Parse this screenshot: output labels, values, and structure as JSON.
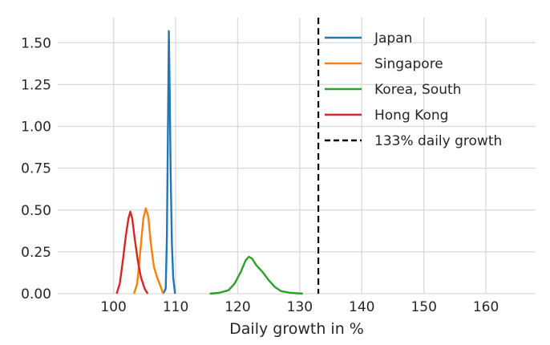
{
  "chart_data": {
    "type": "line",
    "title": "",
    "xlabel": "Daily growth in %",
    "ylabel": "",
    "xlim": [
      91,
      168
    ],
    "ylim": [
      0,
      1.65
    ],
    "x_ticks": [
      "100",
      "110",
      "120",
      "130",
      "140",
      "150",
      "160"
    ],
    "y_ticks": [
      "0.00",
      "0.25",
      "0.50",
      "0.75",
      "1.00",
      "1.25",
      "1.50"
    ],
    "grid": true,
    "legend_position": "top-right",
    "series": [
      {
        "name": "Japan",
        "color": "#1f77b4",
        "points": [
          [
            108.0,
            0.0
          ],
          [
            108.4,
            0.03
          ],
          [
            108.6,
            0.35
          ],
          [
            108.75,
            0.95
          ],
          [
            108.9,
            1.57
          ],
          [
            109.05,
            1.2
          ],
          [
            109.2,
            0.7
          ],
          [
            109.4,
            0.3
          ],
          [
            109.6,
            0.1
          ],
          [
            109.9,
            0.0
          ]
        ]
      },
      {
        "name": "Singapore",
        "color": "#ff7f0e",
        "points": [
          [
            103.3,
            0.0
          ],
          [
            103.8,
            0.06
          ],
          [
            104.3,
            0.25
          ],
          [
            104.8,
            0.45
          ],
          [
            105.2,
            0.51
          ],
          [
            105.6,
            0.46
          ],
          [
            106.0,
            0.3
          ],
          [
            106.5,
            0.16
          ],
          [
            107.0,
            0.1
          ],
          [
            107.5,
            0.05
          ],
          [
            108.0,
            0.0
          ]
        ]
      },
      {
        "name": "Korea, South",
        "color": "#2ca02c",
        "points": [
          [
            115.5,
            0.0
          ],
          [
            117.0,
            0.005
          ],
          [
            118.5,
            0.02
          ],
          [
            119.5,
            0.06
          ],
          [
            120.5,
            0.13
          ],
          [
            121.3,
            0.2
          ],
          [
            121.8,
            0.22
          ],
          [
            122.3,
            0.21
          ],
          [
            123.0,
            0.17
          ],
          [
            124.0,
            0.13
          ],
          [
            125.0,
            0.08
          ],
          [
            126.0,
            0.04
          ],
          [
            127.0,
            0.015
          ],
          [
            128.5,
            0.005
          ],
          [
            130.5,
            0.0
          ]
        ]
      },
      {
        "name": "Hong Kong",
        "color": "#d62728",
        "points": [
          [
            100.5,
            0.0
          ],
          [
            101.0,
            0.06
          ],
          [
            101.5,
            0.2
          ],
          [
            102.0,
            0.35
          ],
          [
            102.4,
            0.45
          ],
          [
            102.7,
            0.49
          ],
          [
            103.0,
            0.45
          ],
          [
            103.4,
            0.33
          ],
          [
            103.9,
            0.2
          ],
          [
            104.4,
            0.1
          ],
          [
            105.0,
            0.03
          ],
          [
            105.5,
            0.0
          ]
        ]
      }
    ],
    "reference_line": {
      "name": "133% daily growth",
      "x": 133,
      "color": "#000000",
      "style": "dashed"
    }
  }
}
